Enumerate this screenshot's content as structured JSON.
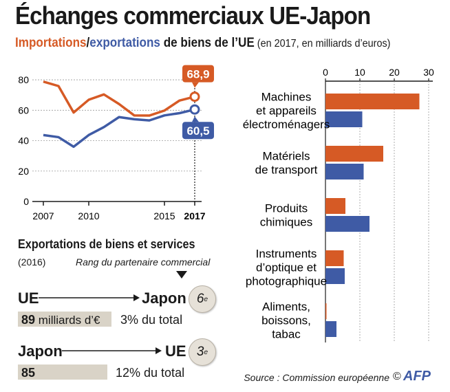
{
  "title": "Échanges commerciaux UE-Japon",
  "subtitle": {
    "imports": "Importations",
    "sep": "/",
    "exports": "exportations",
    "rest": " de biens de l’UE",
    "unit": " (en 2017, en milliards d’euros)"
  },
  "colors": {
    "imports": "#d65a25",
    "exports": "#3f5ba5",
    "grid": "#9a9a9a",
    "value_bar": "#d9d3c7"
  },
  "chart_data": [
    {
      "type": "line",
      "x": [
        2007,
        2008,
        2009,
        2010,
        2011,
        2012,
        2013,
        2014,
        2015,
        2016,
        2017
      ],
      "series": [
        {
          "name": "Importations",
          "color": "#d65a25",
          "values": [
            78.8,
            75.9,
            58.5,
            66.9,
            70.4,
            64.1,
            56.6,
            56.5,
            59.8,
            66.4,
            68.9
          ]
        },
        {
          "name": "exportations",
          "color": "#3f5ba5",
          "values": [
            43.7,
            42.3,
            36.0,
            43.7,
            48.9,
            55.5,
            54.1,
            53.3,
            56.6,
            58.1,
            60.5
          ]
        }
      ],
      "end_labels": [
        "68,9",
        "60,5"
      ],
      "yticks": [
        0,
        20,
        40,
        60,
        80
      ],
      "xticks": [
        "2007",
        "2010",
        "2015",
        "2017"
      ],
      "ylim": [
        0,
        85
      ],
      "xlim": [
        2007,
        2017
      ]
    },
    {
      "type": "bar",
      "orientation": "horizontal",
      "categories": [
        [
          "Machines",
          "et appareils",
          "électroménagers"
        ],
        [
          "Matériels",
          "de transport"
        ],
        [
          "Produits",
          "chimiques"
        ],
        [
          "Instruments",
          "d’optique et",
          "photographique"
        ],
        [
          "Aliments,",
          "boissons,",
          "tabac"
        ]
      ],
      "series": [
        {
          "name": "Importations",
          "color": "#d65a25",
          "values": [
            27.3,
            16.8,
            5.8,
            5.3,
            0.3
          ]
        },
        {
          "name": "exportations",
          "color": "#3f5ba5",
          "values": [
            10.7,
            11.1,
            12.8,
            5.6,
            3.2
          ]
        }
      ],
      "xticks": [
        0,
        10,
        20,
        30
      ],
      "xlim": [
        0,
        30
      ]
    }
  ],
  "services": {
    "title": "Exportations de biens et services",
    "year": "(2016)",
    "rank_label": "Rang du partenaire commercial",
    "routes": [
      {
        "from": "UE",
        "to": "Japon",
        "rank": "6",
        "rank_sup": "e",
        "value": "89",
        "value_suffix": " milliards d’€",
        "share": "3% du total",
        "value_number": 89
      },
      {
        "from": "Japon",
        "to": "UE",
        "rank": "3",
        "rank_sup": "e",
        "value": "85",
        "value_suffix": "",
        "share": "12% du total",
        "value_number": 85
      }
    ]
  },
  "source": "Source : Commission européenne",
  "copyright": "©",
  "logo": "AFP"
}
